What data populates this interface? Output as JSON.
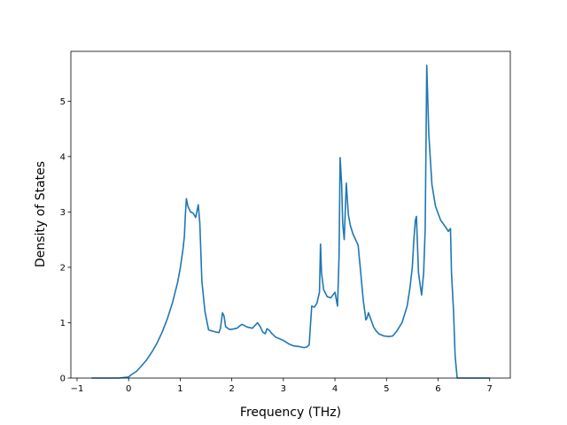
{
  "chart_data": {
    "type": "line",
    "title": "",
    "xlabel": "Frequency (THz)",
    "ylabel": "Density of States",
    "xlim": [
      -1.12,
      7.4
    ],
    "ylim": [
      0,
      5.9
    ],
    "xticks": [
      -1,
      0,
      1,
      2,
      3,
      4,
      5,
      6,
      7
    ],
    "yticks": [
      0,
      1,
      2,
      3,
      4,
      5
    ],
    "grid": false,
    "line_color": "#1f77b4",
    "series": [
      {
        "x": [
          -0.72,
          -0.5,
          -0.2,
          0.0,
          0.05,
          0.15,
          0.25,
          0.35,
          0.45,
          0.55,
          0.65,
          0.75,
          0.85,
          0.95,
          1.0,
          1.05,
          1.08,
          1.1,
          1.12,
          1.15,
          1.2,
          1.25,
          1.3,
          1.35,
          1.38,
          1.42,
          1.48,
          1.55,
          1.62,
          1.7,
          1.75,
          1.78,
          1.82,
          1.85,
          1.88,
          1.95,
          2.0,
          2.1,
          2.15,
          2.2,
          2.3,
          2.4,
          2.5,
          2.55,
          2.6,
          2.65,
          2.68,
          2.72,
          2.78,
          2.85,
          3.0,
          3.1,
          3.2,
          3.3,
          3.4,
          3.45,
          3.5,
          3.55,
          3.6,
          3.65,
          3.7,
          3.72,
          3.74,
          3.78,
          3.85,
          3.92,
          4.0,
          4.05,
          4.08,
          4.1,
          4.13,
          4.15,
          4.18,
          4.22,
          4.26,
          4.3,
          4.35,
          4.45,
          4.5,
          4.55,
          4.6,
          4.62,
          4.65,
          4.7,
          4.75,
          4.8,
          4.85,
          4.95,
          5.05,
          5.12,
          5.2,
          5.3,
          5.4,
          5.45,
          5.5,
          5.53,
          5.56,
          5.58,
          5.62,
          5.68,
          5.72,
          5.75,
          5.78,
          5.82,
          5.88,
          5.95,
          6.05,
          6.15,
          6.2,
          6.24,
          6.26,
          6.3,
          6.33,
          6.37,
          6.5,
          6.8,
          7.0
        ],
        "y": [
          0.0,
          0.0,
          0.0,
          0.02,
          0.06,
          0.12,
          0.22,
          0.33,
          0.47,
          0.63,
          0.83,
          1.07,
          1.36,
          1.73,
          1.98,
          2.3,
          2.55,
          2.95,
          3.24,
          3.1,
          3.0,
          2.98,
          2.9,
          3.13,
          2.8,
          1.75,
          1.2,
          0.87,
          0.85,
          0.83,
          0.82,
          0.9,
          1.18,
          1.12,
          0.93,
          0.88,
          0.88,
          0.9,
          0.94,
          0.97,
          0.92,
          0.9,
          1.0,
          0.93,
          0.83,
          0.8,
          0.89,
          0.87,
          0.8,
          0.74,
          0.68,
          0.62,
          0.58,
          0.57,
          0.55,
          0.56,
          0.6,
          1.3,
          1.28,
          1.35,
          1.55,
          2.42,
          1.9,
          1.6,
          1.47,
          1.45,
          1.55,
          1.3,
          2.2,
          3.98,
          3.5,
          2.8,
          2.5,
          3.52,
          2.95,
          2.75,
          2.6,
          2.4,
          1.9,
          1.4,
          1.05,
          1.08,
          1.18,
          1.05,
          0.92,
          0.85,
          0.8,
          0.76,
          0.75,
          0.76,
          0.85,
          1.0,
          1.3,
          1.6,
          2.0,
          2.5,
          2.85,
          2.92,
          1.9,
          1.5,
          1.9,
          2.7,
          5.65,
          4.4,
          3.5,
          3.1,
          2.85,
          2.72,
          2.65,
          2.7,
          1.9,
          1.2,
          0.4,
          0.0,
          0.0,
          0.0,
          0.0
        ]
      }
    ]
  }
}
